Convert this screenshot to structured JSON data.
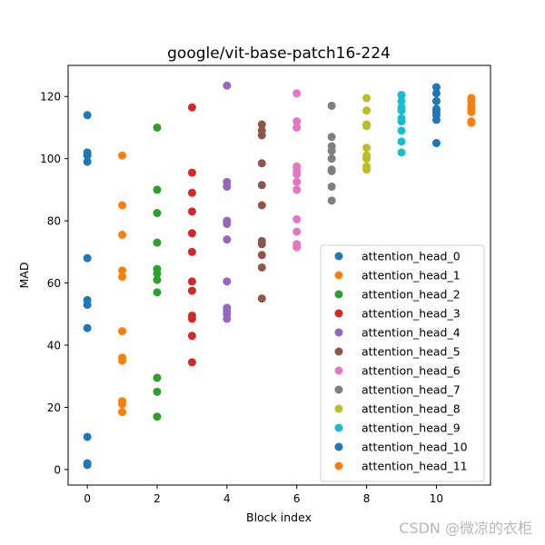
{
  "chart_data": {
    "type": "scatter",
    "title": "google/vit-base-patch16-224",
    "xlabel": "Block index",
    "ylabel": "MAD",
    "xlim": [
      -0.55,
      11.55
    ],
    "ylim": [
      -5,
      130
    ],
    "xticks": [
      0,
      2,
      4,
      6,
      8,
      10
    ],
    "yticks": [
      0,
      20,
      40,
      60,
      80,
      100,
      120
    ],
    "grid": false,
    "legend_position": "lower-right",
    "series": [
      {
        "name": "attention_head_0",
        "color": "#1f77b4",
        "x": 0,
        "values": [
          114,
          102,
          101,
          99,
          68,
          54.5,
          53,
          45.5,
          10.5,
          2,
          1.5
        ]
      },
      {
        "name": "attention_head_1",
        "color": "#ff7f0e",
        "x": 1,
        "values": [
          101,
          85,
          75.5,
          64,
          62,
          44.5,
          36,
          35,
          22,
          21,
          18.5
        ]
      },
      {
        "name": "attention_head_2",
        "color": "#2ca02c",
        "x": 2,
        "values": [
          110,
          90,
          82.5,
          73,
          64.5,
          63,
          61,
          57,
          29.5,
          25,
          17
        ]
      },
      {
        "name": "attention_head_3",
        "color": "#d62728",
        "x": 3,
        "values": [
          116.5,
          95.5,
          89,
          83,
          76,
          70,
          60.5,
          57.5,
          49.5,
          48.5,
          43,
          34.5
        ]
      },
      {
        "name": "attention_head_4",
        "color": "#9467bd",
        "x": 4,
        "values": [
          123.5,
          92.5,
          91,
          80,
          79,
          74,
          60.5,
          52,
          51,
          50,
          48.5
        ]
      },
      {
        "name": "attention_head_5",
        "color": "#8c564b",
        "x": 5,
        "values": [
          111,
          109,
          107.5,
          98.5,
          91.5,
          85,
          73.5,
          72.5,
          69,
          65,
          55
        ]
      },
      {
        "name": "attention_head_6",
        "color": "#e377c2",
        "x": 6,
        "values": [
          121,
          112,
          110,
          97.5,
          96,
          95,
          92.5,
          90,
          80.5,
          76.5,
          72.5,
          71.5
        ]
      },
      {
        "name": "attention_head_7",
        "color": "#7f7f7f",
        "x": 7,
        "values": [
          117,
          107,
          104,
          102.5,
          100,
          96.5,
          96,
          91,
          86.5
        ]
      },
      {
        "name": "attention_head_8",
        "color": "#bcbd22",
        "x": 8,
        "values": [
          119.5,
          115.5,
          111,
          110.5,
          103.5,
          101,
          100,
          97.5,
          96.5
        ]
      },
      {
        "name": "attention_head_9",
        "color": "#17becf",
        "x": 9,
        "values": [
          120.5,
          118.5,
          116.5,
          115.5,
          113,
          112,
          109,
          105.5,
          102
        ]
      },
      {
        "name": "attention_head_10",
        "color": "#1f77b4",
        "x": 10,
        "values": [
          123,
          121,
          118.5,
          116,
          115,
          114,
          112.5,
          105
        ]
      },
      {
        "name": "attention_head_11",
        "color": "#ff7f0e",
        "x": 11,
        "values": [
          119.5,
          118.5,
          117,
          116,
          115,
          112,
          111.5
        ]
      }
    ]
  },
  "watermark": "CSDN @微凉的衣柜"
}
